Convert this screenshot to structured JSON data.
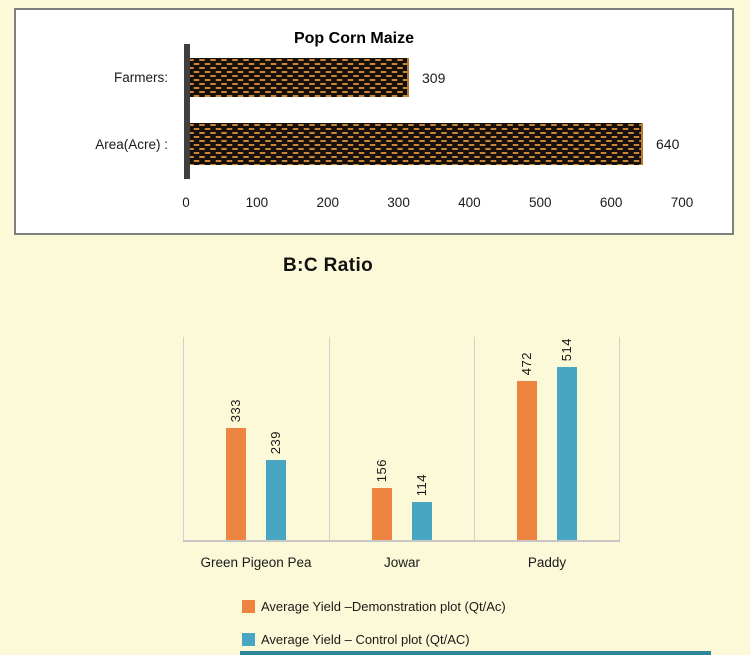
{
  "page": {
    "background_color": "#FBF9D7",
    "bottom_strip_color": "#2F8699"
  },
  "chart_data": [
    {
      "type": "bar",
      "orientation": "horizontal",
      "title": "Pop Corn Maize",
      "categories": [
        "Farmers:",
        "Area(Acre) :"
      ],
      "values": [
        309,
        640
      ],
      "data_labels": [
        "309",
        "640"
      ],
      "xlim": [
        0,
        700
      ],
      "x_ticks": [
        0,
        100,
        200,
        300,
        400,
        500,
        600,
        700
      ],
      "bar_fill": "black with orange dotted pattern",
      "bar_base_color": "#17100A",
      "bar_dot_color": "#C98636",
      "axis_line_color": "#3F3F3F",
      "plot_background": "#FFFFFF",
      "grid": false,
      "legend_position": "none"
    },
    {
      "type": "bar",
      "orientation": "vertical",
      "title": "B:C Ratio",
      "categories": [
        "Green Pigeon Pea",
        "Jowar",
        "Paddy"
      ],
      "series": [
        {
          "name": "Average Yield –Demonstration plot (Qt/Ac)",
          "color": "#ED8540",
          "values": [
            333,
            156,
            472
          ]
        },
        {
          "name": "Average Yield – Control plot (Qt/AC)",
          "color": "#49A6C3",
          "values": [
            239,
            114,
            514
          ]
        }
      ],
      "ylim": [
        0,
        610
      ],
      "grid": "vertical category separator lines only",
      "gridline_color": "#D2D2D2",
      "data_labels_rotation": "vertical",
      "legend_position": "bottom"
    }
  ]
}
